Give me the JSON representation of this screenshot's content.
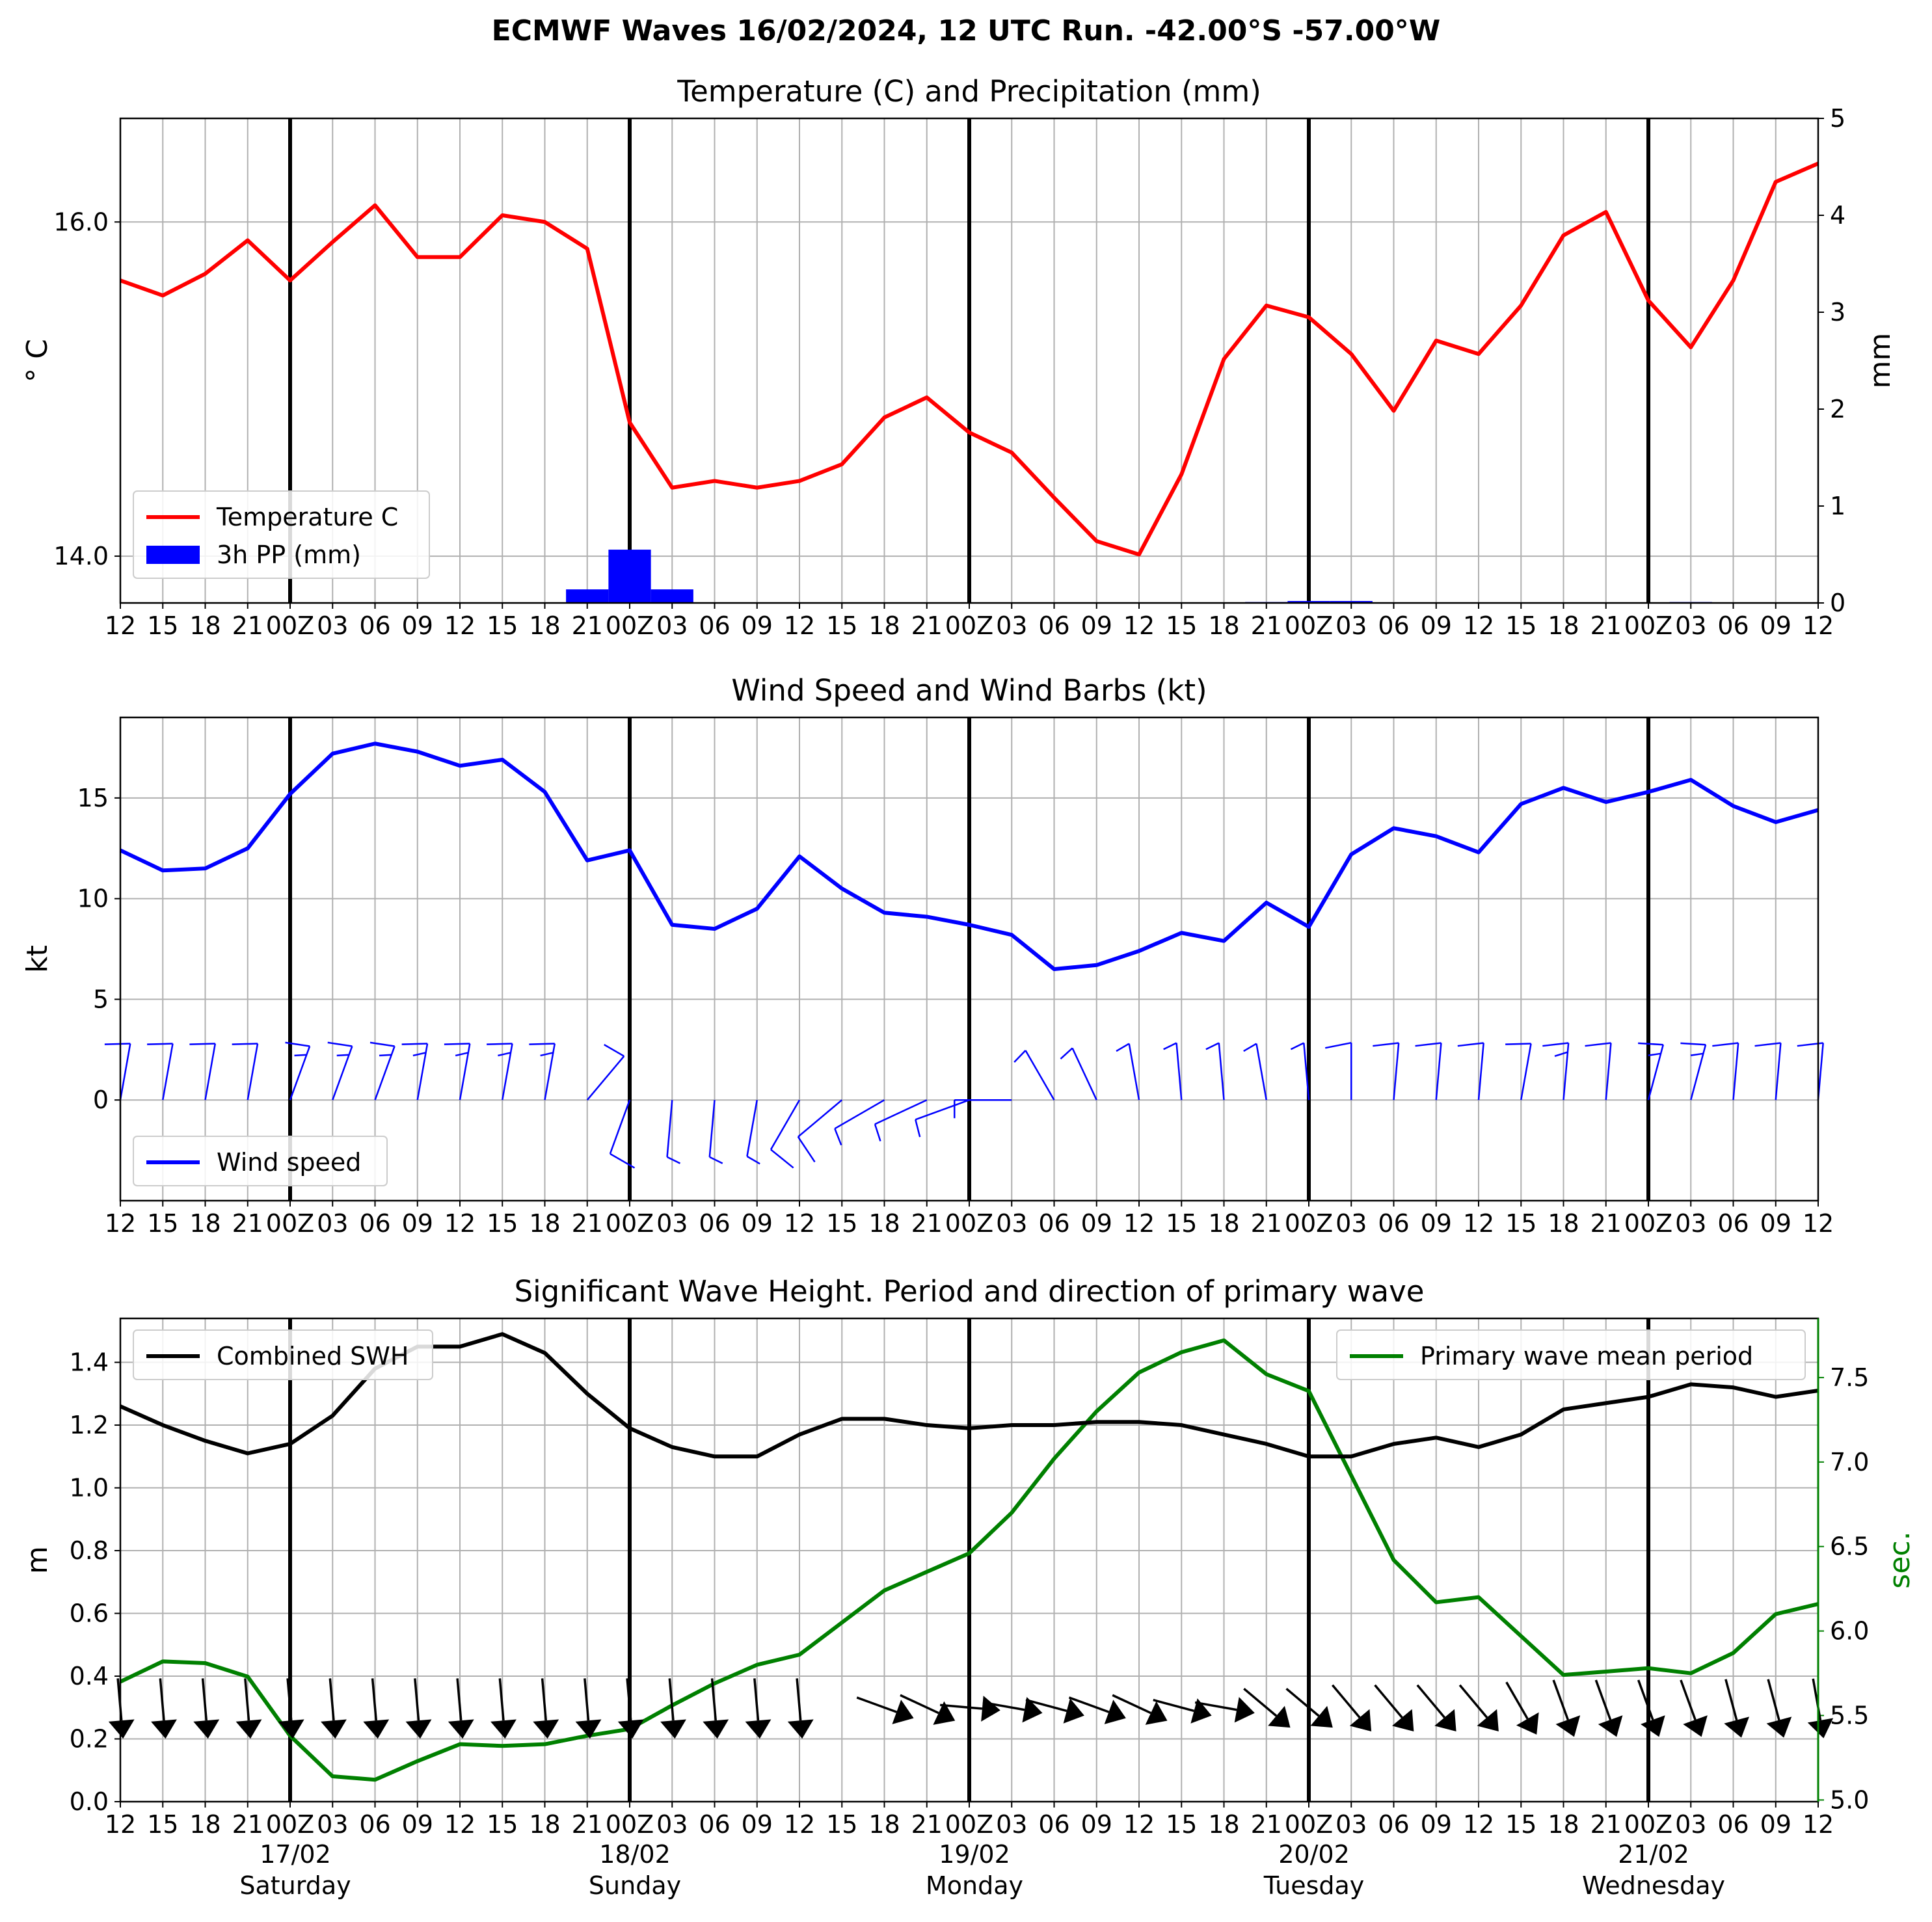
{
  "title": "ECMWF Waves 16/02/2024, 12 UTC Run. -42.00°S -57.00°W",
  "colors": {
    "temperature": "#ff0000",
    "precipitation": "#0000ff",
    "wind": "#0000ff",
    "swh": "#000000",
    "period": "#008000",
    "grid": "#b0b0b0",
    "day_line": "#000000"
  },
  "time_axis": {
    "hours_labels": [
      "12",
      "15",
      "18",
      "21",
      "00Z",
      "03",
      "06",
      "09",
      "12",
      "15",
      "18",
      "21",
      "00Z",
      "03",
      "06",
      "09",
      "12",
      "15",
      "18",
      "21",
      "00Z",
      "03",
      "06",
      "09",
      "12",
      "15",
      "18",
      "21",
      "00Z",
      "03",
      "06",
      "09",
      "12",
      "15",
      "18",
      "21",
      "00Z",
      "03",
      "06",
      "09",
      "12"
    ],
    "day_breaks": [
      4,
      12,
      20,
      28,
      36
    ],
    "day_labels": [
      {
        "date": "17/02",
        "weekday": "Saturday"
      },
      {
        "date": "18/02",
        "weekday": "Sunday"
      },
      {
        "date": "19/02",
        "weekday": "Monday"
      },
      {
        "date": "20/02",
        "weekday": "Tuesday"
      },
      {
        "date": "21/02",
        "weekday": "Wednesday"
      }
    ]
  },
  "chart_data": [
    {
      "type": "line",
      "title": "Temperature (C) and Precipitation (mm)",
      "ylabel": "$^\\circ$C",
      "ylabel_display": "° C",
      "ylabel_right": "mm",
      "ylim": [
        13.72,
        16.62
      ],
      "yticks": [
        14,
        16
      ],
      "ylim_right": [
        0,
        5
      ],
      "yticks_right": [
        0,
        1,
        2,
        3,
        4,
        5
      ],
      "legend": {
        "placement": "lower-left",
        "entries": [
          "Temperature C",
          "3h PP (mm)"
        ]
      },
      "series": [
        {
          "name": "Temperature C",
          "type": "line",
          "values": [
            15.65,
            15.56,
            15.69,
            15.89,
            15.65,
            15.88,
            16.1,
            15.79,
            15.79,
            16.04,
            16.0,
            15.84,
            14.8,
            14.41,
            14.45,
            14.41,
            14.45,
            14.55,
            14.83,
            14.95,
            14.74,
            14.62,
            14.35,
            14.09,
            14.01,
            14.49,
            15.18,
            15.5,
            15.43,
            15.21,
            14.87,
            15.29,
            15.21,
            15.5,
            15.92,
            16.06,
            15.53,
            15.25,
            15.65,
            16.24,
            16.35
          ]
        },
        {
          "name": "3h PP (mm)",
          "type": "bar",
          "values": [
            0,
            0,
            0,
            0,
            0,
            0,
            0,
            0,
            0,
            0,
            0,
            0.14,
            0.55,
            0.14,
            0,
            0,
            0,
            0,
            0,
            0,
            0,
            0,
            0,
            0,
            0,
            0,
            0,
            0.01,
            0.02,
            0.02,
            0,
            0,
            0,
            0,
            0,
            0,
            0,
            0.01,
            0,
            0,
            0
          ]
        }
      ]
    },
    {
      "type": "line",
      "title": "Wind Speed and Wind Barbs (kt)",
      "ylabel": "kt",
      "ylim": [
        -5,
        19
      ],
      "yticks": [
        0,
        5,
        10,
        15
      ],
      "legend": {
        "placement": "lower-left",
        "entries": [
          "Wind speed"
        ]
      },
      "series": [
        {
          "name": "Wind speed",
          "values": [
            12.4,
            11.4,
            11.5,
            12.5,
            15.2,
            17.2,
            17.7,
            17.3,
            16.6,
            16.9,
            15.3,
            11.9,
            12.4,
            8.7,
            8.5,
            9.5,
            12.1,
            10.5,
            9.3,
            9.1,
            8.7,
            8.2,
            6.5,
            6.7,
            7.4,
            8.3,
            7.9,
            9.8,
            8.6,
            12.2,
            13.5,
            13.1,
            12.3,
            14.7,
            15.5,
            14.8,
            15.3,
            15.9,
            14.6,
            13.8,
            14.4
          ]
        }
      ],
      "barb_tilt_deg": [
        10,
        10,
        10,
        10,
        20,
        20,
        20,
        10,
        10,
        10,
        10,
        40,
        -160,
        -175,
        -175,
        -170,
        -150,
        -130,
        -120,
        -115,
        -110,
        -90,
        -30,
        -25,
        -10,
        -5,
        -5,
        -10,
        -5,
        0,
        5,
        5,
        5,
        10,
        5,
        5,
        15,
        15,
        5,
        5,
        5
      ]
    },
    {
      "type": "line",
      "title": "Significant Wave Height. Period and direction of primary wave",
      "ylabel": "m",
      "ylim": [
        0,
        1.54
      ],
      "yticks": [
        0.0,
        0.2,
        0.4,
        0.6,
        0.8,
        1.0,
        1.2,
        1.4
      ],
      "ylabel_right": "sec.",
      "ylim_right": [
        4.99,
        7.85
      ],
      "yticks_right": [
        5.0,
        5.5,
        6.0,
        6.5,
        7.0,
        7.5
      ],
      "legend": {
        "placement": "upper-left / upper-right",
        "entries": [
          "Combined SWH",
          "Primary wave mean period"
        ]
      },
      "series": [
        {
          "name": "Combined SWH",
          "values": [
            1.26,
            1.2,
            1.15,
            1.11,
            1.14,
            1.23,
            1.38,
            1.45,
            1.45,
            1.49,
            1.43,
            1.3,
            1.19,
            1.13,
            1.1,
            1.1,
            1.17,
            1.22,
            1.22,
            1.2,
            1.19,
            1.2,
            1.2,
            1.21,
            1.21,
            1.2,
            1.17,
            1.14,
            1.1,
            1.1,
            1.14,
            1.16,
            1.13,
            1.17,
            1.25,
            1.27,
            1.29,
            1.33,
            1.32,
            1.29,
            1.31
          ]
        },
        {
          "name": "Primary wave mean period",
          "values": [
            5.7,
            5.82,
            5.81,
            5.73,
            5.38,
            5.14,
            5.12,
            5.23,
            5.33,
            5.32,
            5.33,
            5.38,
            5.42,
            5.56,
            5.69,
            5.8,
            5.86,
            6.05,
            6.24,
            6.35,
            6.46,
            6.7,
            7.02,
            7.3,
            7.53,
            7.65,
            7.72,
            7.52,
            7.42,
            6.92,
            6.42,
            6.17,
            6.2,
            5.97,
            5.74,
            5.76,
            5.78,
            5.75,
            5.87,
            6.1,
            6.16
          ]
        }
      ],
      "direction_arrows": {
        "y_m": 0.3,
        "angle_deg": [
          95,
          95,
          95,
          95,
          95,
          95,
          95,
          95,
          95,
          95,
          95,
          95,
          95,
          95,
          95,
          95,
          95,
          null,
          160,
          155,
          175,
          170,
          165,
          160,
          155,
          165,
          170,
          140,
          140,
          130,
          130,
          130,
          130,
          120,
          110,
          110,
          110,
          110,
          105,
          105,
          100
        ]
      }
    }
  ]
}
